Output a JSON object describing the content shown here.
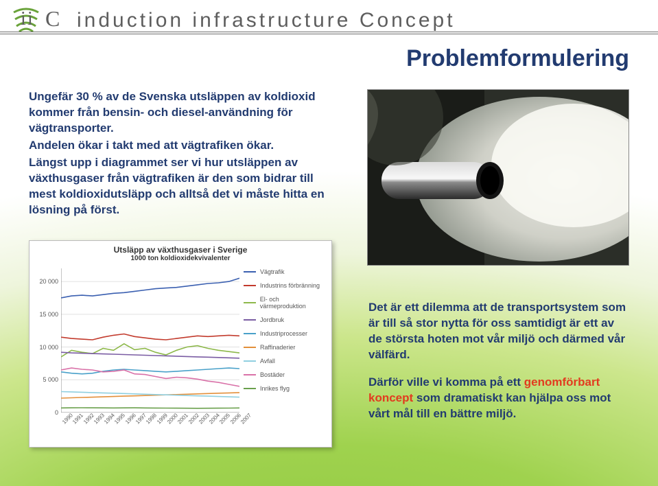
{
  "brand": {
    "abbrev_i": "i",
    "abbrev_c": "C",
    "full": "induction infrastructure Concept"
  },
  "title": "Problemformulering",
  "intro": {
    "p1": "Ungefär 30 % av de Svenska utsläppen av koldioxid kommer från bensin- och diesel-användning för vägtransporter.",
    "p2": "Andelen ökar i takt med att vägtrafiken ökar.",
    "p3": "Längst upp i diagrammet ser vi hur utsläppen av växthusgaser från vägtrafiken är den som bidrar till mest koldioxidutsläpp och alltså det vi måste hitta en lösning på först."
  },
  "chart": {
    "type": "line",
    "title_main": "Utsläpp av växthusgaser i Sverige",
    "title_sub": "1000 ton koldioxidekvivalenter",
    "y": {
      "min": 0,
      "max": 22000,
      "ticks": [
        0,
        5000,
        10000,
        15000,
        20000
      ],
      "labels": [
        "0",
        "5 000",
        "10 000",
        "15 000",
        "20 000"
      ]
    },
    "x_labels": [
      "1990",
      "1991",
      "1992",
      "1993",
      "1994",
      "1995",
      "1996",
      "1997",
      "1998",
      "1999",
      "2000",
      "2001",
      "2002",
      "2003",
      "2004",
      "2005",
      "2006",
      "2007"
    ],
    "grid_color": "#e0e0e0",
    "background_color": "#ffffff",
    "series": [
      {
        "name": "Vägtrafik",
        "color": "#3a5fb0",
        "values": [
          17500,
          17800,
          17900,
          17800,
          18000,
          18200,
          18300,
          18500,
          18700,
          18900,
          19000,
          19100,
          19300,
          19500,
          19700,
          19800,
          20000,
          20500
        ]
      },
      {
        "name": "Industrins förbränning",
        "color": "#c23a2c",
        "values": [
          11500,
          11300,
          11200,
          11100,
          11500,
          11800,
          12000,
          11600,
          11400,
          11200,
          11100,
          11300,
          11500,
          11700,
          11600,
          11700,
          11800,
          11700
        ]
      },
      {
        "name": "El- och värmeproduktion",
        "color": "#8db84a",
        "values": [
          8500,
          9500,
          9200,
          9000,
          9800,
          9500,
          10500,
          9600,
          9800,
          9200,
          8800,
          9500,
          10000,
          10200,
          9800,
          9500,
          9300,
          9100
        ]
      },
      {
        "name": "Jordbruk",
        "color": "#7a5ca3",
        "values": [
          9200,
          9100,
          9050,
          9000,
          8950,
          8900,
          8850,
          8800,
          8750,
          8700,
          8650,
          8600,
          8550,
          8500,
          8450,
          8400,
          8350,
          8300
        ]
      },
      {
        "name": "Industriprocesser",
        "color": "#48a0c9",
        "values": [
          6200,
          6000,
          5900,
          6000,
          6300,
          6500,
          6600,
          6500,
          6400,
          6300,
          6200,
          6300,
          6400,
          6500,
          6600,
          6700,
          6800,
          6700
        ]
      },
      {
        "name": "Raffinaderier",
        "color": "#e38f3a",
        "values": [
          2200,
          2250,
          2300,
          2350,
          2400,
          2450,
          2500,
          2550,
          2600,
          2650,
          2700,
          2750,
          2800,
          2850,
          2900,
          2950,
          3000,
          3050
        ]
      },
      {
        "name": "Avfall",
        "color": "#8fcfe0",
        "values": [
          3200,
          3150,
          3100,
          3050,
          3000,
          2950,
          2900,
          2850,
          2800,
          2750,
          2700,
          2650,
          2600,
          2550,
          2500,
          2450,
          2400,
          2350
        ]
      },
      {
        "name": "Bostäder",
        "color": "#d971a8",
        "values": [
          6500,
          6800,
          6600,
          6500,
          6200,
          6300,
          6500,
          5900,
          5800,
          5500,
          5200,
          5400,
          5300,
          5100,
          4800,
          4600,
          4300,
          4000
        ]
      },
      {
        "name": "Inrikes flyg",
        "color": "#6aa04c",
        "values": [
          700,
          720,
          730,
          720,
          710,
          700,
          710,
          720,
          700,
          690,
          680,
          670,
          660,
          650,
          660,
          670,
          680,
          700
        ]
      }
    ]
  },
  "callout": {
    "p1a": "Det är ett dilemma att de transportsystem som är till så stor nytta för oss samtidigt är ett av de största hoten mot vår miljö och därmed vår välfärd.",
    "p2a": "Därför ville vi komma på ett ",
    "p2hl": "genomförbart koncept",
    "p2b": " som dramatiskt kan hjälpa oss mot vårt mål till en bättre miljö."
  },
  "colors": {
    "heading": "#223b70",
    "highlight": "#e23b1f",
    "rule": "#6c6c6c"
  }
}
